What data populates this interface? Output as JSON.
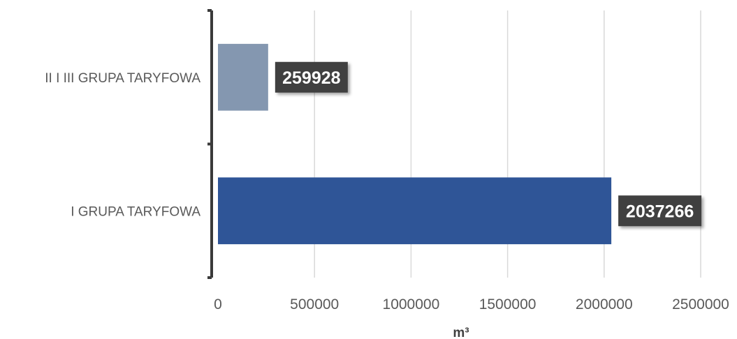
{
  "chart_data": {
    "type": "bar",
    "orientation": "horizontal",
    "categories": [
      "II I III GRUPA TARYFOWA",
      "I GRUPA TARYFOWA"
    ],
    "values": [
      259928,
      2037266
    ],
    "data_labels": [
      "259928",
      "2037266"
    ],
    "bar_colors": [
      "#8497b0",
      "#2f5597"
    ],
    "xlabel": "m³",
    "xlim": [
      0,
      2500000
    ],
    "x_ticks": [
      0,
      500000,
      1000000,
      1500000,
      2000000,
      2500000
    ],
    "x_tick_labels": [
      "0",
      "500000",
      "1000000",
      "1500000",
      "2000000",
      "2500000"
    ],
    "grid": true,
    "legend": "none"
  }
}
